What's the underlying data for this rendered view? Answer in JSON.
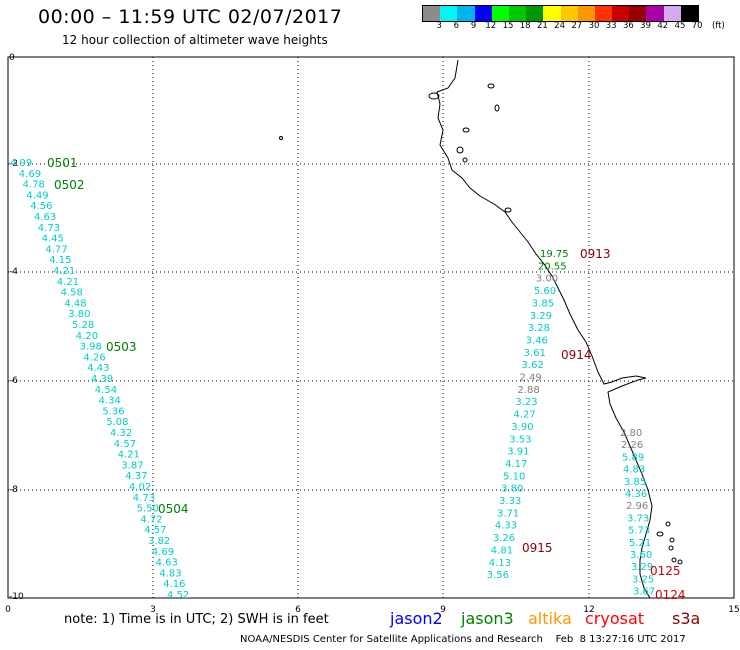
{
  "header": {
    "title": "00:00 – 11:59 UTC 02/07/2017",
    "subtitle": "12 hour collection of altimeter wave heights"
  },
  "scale": {
    "colors": [
      "#8c8c8c",
      "#00f5f5",
      "#00b4f0",
      "#0000ff",
      "#00ff00",
      "#00c800",
      "#009600",
      "#ffff00",
      "#ffc800",
      "#ff9600",
      "#ff3200",
      "#c80000",
      "#960000",
      "#aa00aa",
      "#d5aaee",
      "#000000"
    ],
    "labels": [
      "3",
      "6",
      "9",
      "12",
      "15",
      "18",
      "21",
      "24",
      "27",
      "30",
      "33",
      "36",
      "39",
      "42",
      "45",
      "70",
      "(ft)"
    ]
  },
  "axes": {
    "x_ticks": [
      "0",
      "3",
      "6",
      "9",
      "12",
      "15"
    ],
    "y_ticks": [
      "0",
      "-2",
      "-4",
      "-6",
      "-8",
      "-10"
    ]
  },
  "passes": [
    {
      "label": "0501",
      "color": "#008000"
    },
    {
      "label": "0502",
      "color": "#008000"
    },
    {
      "label": "0503",
      "color": "#008000"
    },
    {
      "label": "0504",
      "color": "#008000"
    },
    {
      "label": "0913",
      "color": "#8b0000"
    },
    {
      "label": "0914",
      "color": "#8b0000"
    },
    {
      "label": "0915",
      "color": "#8b0000"
    },
    {
      "label": "0125",
      "color": "#cc0000"
    },
    {
      "label": "0124",
      "color": "#cc0000"
    }
  ],
  "tracks": [
    {
      "color": "#00cccc",
      "values": [
        "4.99",
        "4.69",
        "4.78",
        "4.49",
        "4.56",
        "4.63",
        "4.73",
        "4.45",
        "4.77",
        "4.15",
        "4.21",
        "4.21",
        "4.58",
        "4.48",
        "3.80",
        "5.28",
        "4.20",
        "3.98",
        "4.26",
        "4.43",
        "4.39",
        "4.54",
        "4.34",
        "5.36",
        "5.08",
        "4.32",
        "4.57",
        "4.21",
        "3.87",
        "4.37",
        "4.02",
        "4.73",
        "5.50",
        "4.72",
        "4.57",
        "3.82",
        "4.69",
        "4.63",
        "4.83",
        "4.16",
        "4.52"
      ]
    },
    {
      "values": [
        {
          "v": "19.75",
          "c": "#008000"
        },
        {
          "v": "20.55",
          "c": "#008000"
        },
        {
          "v": "3.00",
          "c": "#808080"
        },
        {
          "v": "5.60",
          "c": "#00cccc"
        },
        {
          "v": "3.85",
          "c": "#00cccc"
        },
        {
          "v": "3.29",
          "c": "#00cccc"
        },
        {
          "v": "3.28",
          "c": "#00cccc"
        },
        {
          "v": "3.46",
          "c": "#00cccc"
        },
        {
          "v": "3.61",
          "c": "#00cccc"
        },
        {
          "v": "3.62",
          "c": "#00cccc"
        },
        {
          "v": "2.49",
          "c": "#808080"
        },
        {
          "v": "2.88",
          "c": "#808080"
        },
        {
          "v": "3.23",
          "c": "#00cccc"
        },
        {
          "v": "4.27",
          "c": "#00cccc"
        },
        {
          "v": "3.90",
          "c": "#00cccc"
        },
        {
          "v": "3.53",
          "c": "#00cccc"
        },
        {
          "v": "3.91",
          "c": "#00cccc"
        },
        {
          "v": "4.17",
          "c": "#00cccc"
        },
        {
          "v": "5.10",
          "c": "#00cccc"
        },
        {
          "v": "3.80",
          "c": "#00cccc"
        },
        {
          "v": "3.33",
          "c": "#00cccc"
        },
        {
          "v": "3.71",
          "c": "#00cccc"
        },
        {
          "v": "4.33",
          "c": "#00cccc"
        },
        {
          "v": "3.26",
          "c": "#00cccc"
        },
        {
          "v": "4.81",
          "c": "#00cccc"
        },
        {
          "v": "4.13",
          "c": "#00cccc"
        },
        {
          "v": "3.56",
          "c": "#00cccc"
        }
      ]
    },
    {
      "values": [
        {
          "v": "2.80",
          "c": "#808080"
        },
        {
          "v": "2.26",
          "c": "#808080"
        },
        {
          "v": "5.89",
          "c": "#00cccc"
        },
        {
          "v": "4.83",
          "c": "#00cccc"
        },
        {
          "v": "3.85",
          "c": "#00cccc"
        },
        {
          "v": "4.36",
          "c": "#00cccc"
        },
        {
          "v": "2.96",
          "c": "#808080"
        },
        {
          "v": "3.73",
          "c": "#00cccc"
        },
        {
          "v": "5.73",
          "c": "#00cccc"
        },
        {
          "v": "5.21",
          "c": "#00cccc"
        },
        {
          "v": "3.60",
          "c": "#00cccc"
        },
        {
          "v": "3.29",
          "c": "#00cccc"
        },
        {
          "v": "3.25",
          "c": "#00cccc"
        },
        {
          "v": "3.67",
          "c": "#00cccc"
        }
      ]
    }
  ],
  "footer": {
    "note": "note: 1) Time is in UTC; 2) SWH is in feet",
    "legend": [
      {
        "name": "jason2",
        "color": "#0000ff"
      },
      {
        "name": "jason3",
        "color": "#008000"
      },
      {
        "name": "altika",
        "color": "#ff9600"
      },
      {
        "name": "cryosat",
        "color": "#ff0000"
      },
      {
        "name": "s3a",
        "color": "#8b0000"
      }
    ],
    "credit": "NOAA/NESDIS Center for Satellite Applications and Research    Feb  8 13:27:16 UTC 2017"
  }
}
